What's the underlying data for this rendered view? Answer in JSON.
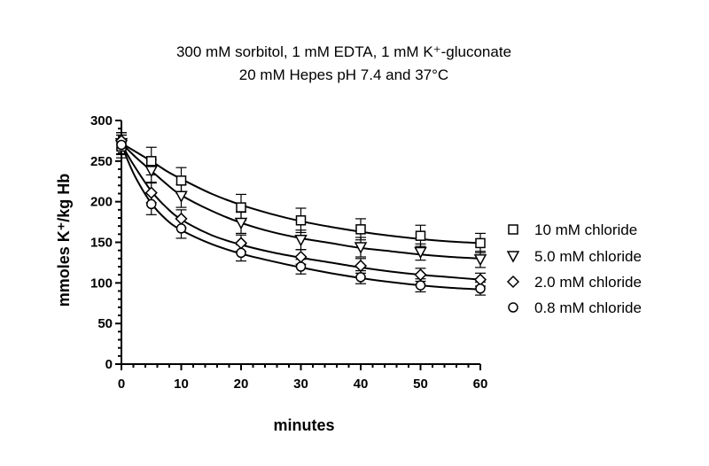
{
  "chart_data": {
    "type": "scatter",
    "title_lines": [
      "300 mM sorbitol, 1 mM EDTA, 1 mM K⁺-gluconate",
      "20 mM Hepes pH 7.4 and 37°C"
    ],
    "xlabel": "minutes",
    "ylabel": "mmoles K⁺/kg Hb",
    "xlim": [
      0,
      60
    ],
    "ylim": [
      0,
      300
    ],
    "x_ticks": [
      0,
      10,
      20,
      30,
      40,
      50,
      60
    ],
    "y_ticks": [
      0,
      50,
      100,
      150,
      200,
      250,
      300
    ],
    "grid": false,
    "legend_position": "right",
    "x": [
      0,
      5,
      10,
      20,
      30,
      40,
      50,
      60
    ],
    "series": [
      {
        "name": "10 mM chloride",
        "marker": "square",
        "values": [
          268,
          250,
          226,
          193,
          177,
          166,
          158,
          149
        ],
        "errors": [
          14,
          17,
          16,
          16,
          15,
          13,
          13,
          12
        ]
      },
      {
        "name": "5.0 mM chloride",
        "marker": "triangle-down",
        "values": [
          272,
          238,
          207,
          174,
          153,
          144,
          138,
          129
        ],
        "errors": [
          13,
          14,
          14,
          13,
          12,
          12,
          10,
          10
        ]
      },
      {
        "name": "2.0 mM chloride",
        "marker": "diamond",
        "values": [
          275,
          211,
          179,
          149,
          132,
          121,
          110,
          104
        ],
        "errors": [
          10,
          12,
          11,
          10,
          9,
          9,
          8,
          8
        ]
      },
      {
        "name": "0.8 mM chloride",
        "marker": "circle",
        "values": [
          270,
          197,
          167,
          137,
          120,
          107,
          97,
          93
        ],
        "errors": [
          12,
          13,
          12,
          10,
          9,
          8,
          8,
          8
        ]
      }
    ],
    "fit_curves": [
      {
        "series": "10 mM chloride",
        "x": [
          0,
          2.5,
          5,
          7.5,
          10,
          15,
          20,
          25,
          30,
          35,
          40,
          45,
          50,
          55,
          60
        ],
        "y": [
          272,
          261,
          250,
          238,
          228,
          210,
          196,
          185,
          176,
          169,
          163,
          158,
          154,
          151,
          149
        ]
      },
      {
        "series": "5.0 mM chloride",
        "x": [
          0,
          2.5,
          5,
          7.5,
          10,
          15,
          20,
          25,
          30,
          35,
          40,
          45,
          50,
          55,
          60
        ],
        "y": [
          272,
          254,
          238,
          222,
          208,
          189,
          174,
          163,
          155,
          149,
          143,
          139,
          135,
          132,
          130
        ]
      },
      {
        "series": "2.0 mM chloride",
        "x": [
          0,
          1,
          2.5,
          5,
          7.5,
          10,
          15,
          20,
          25,
          30,
          35,
          40,
          45,
          50,
          55,
          60
        ],
        "y": [
          272,
          258,
          240,
          213,
          193,
          178,
          159,
          147,
          138,
          131,
          125,
          119,
          114,
          110,
          107,
          104
        ]
      },
      {
        "series": "0.8 mM chloride",
        "x": [
          0,
          1,
          2.5,
          5,
          7.5,
          10,
          15,
          20,
          25,
          30,
          35,
          40,
          45,
          50,
          55,
          60
        ],
        "y": [
          272,
          252,
          228,
          198,
          178,
          165,
          148,
          136,
          127,
          119,
          112,
          106,
          101,
          97,
          94,
          92
        ]
      }
    ]
  }
}
